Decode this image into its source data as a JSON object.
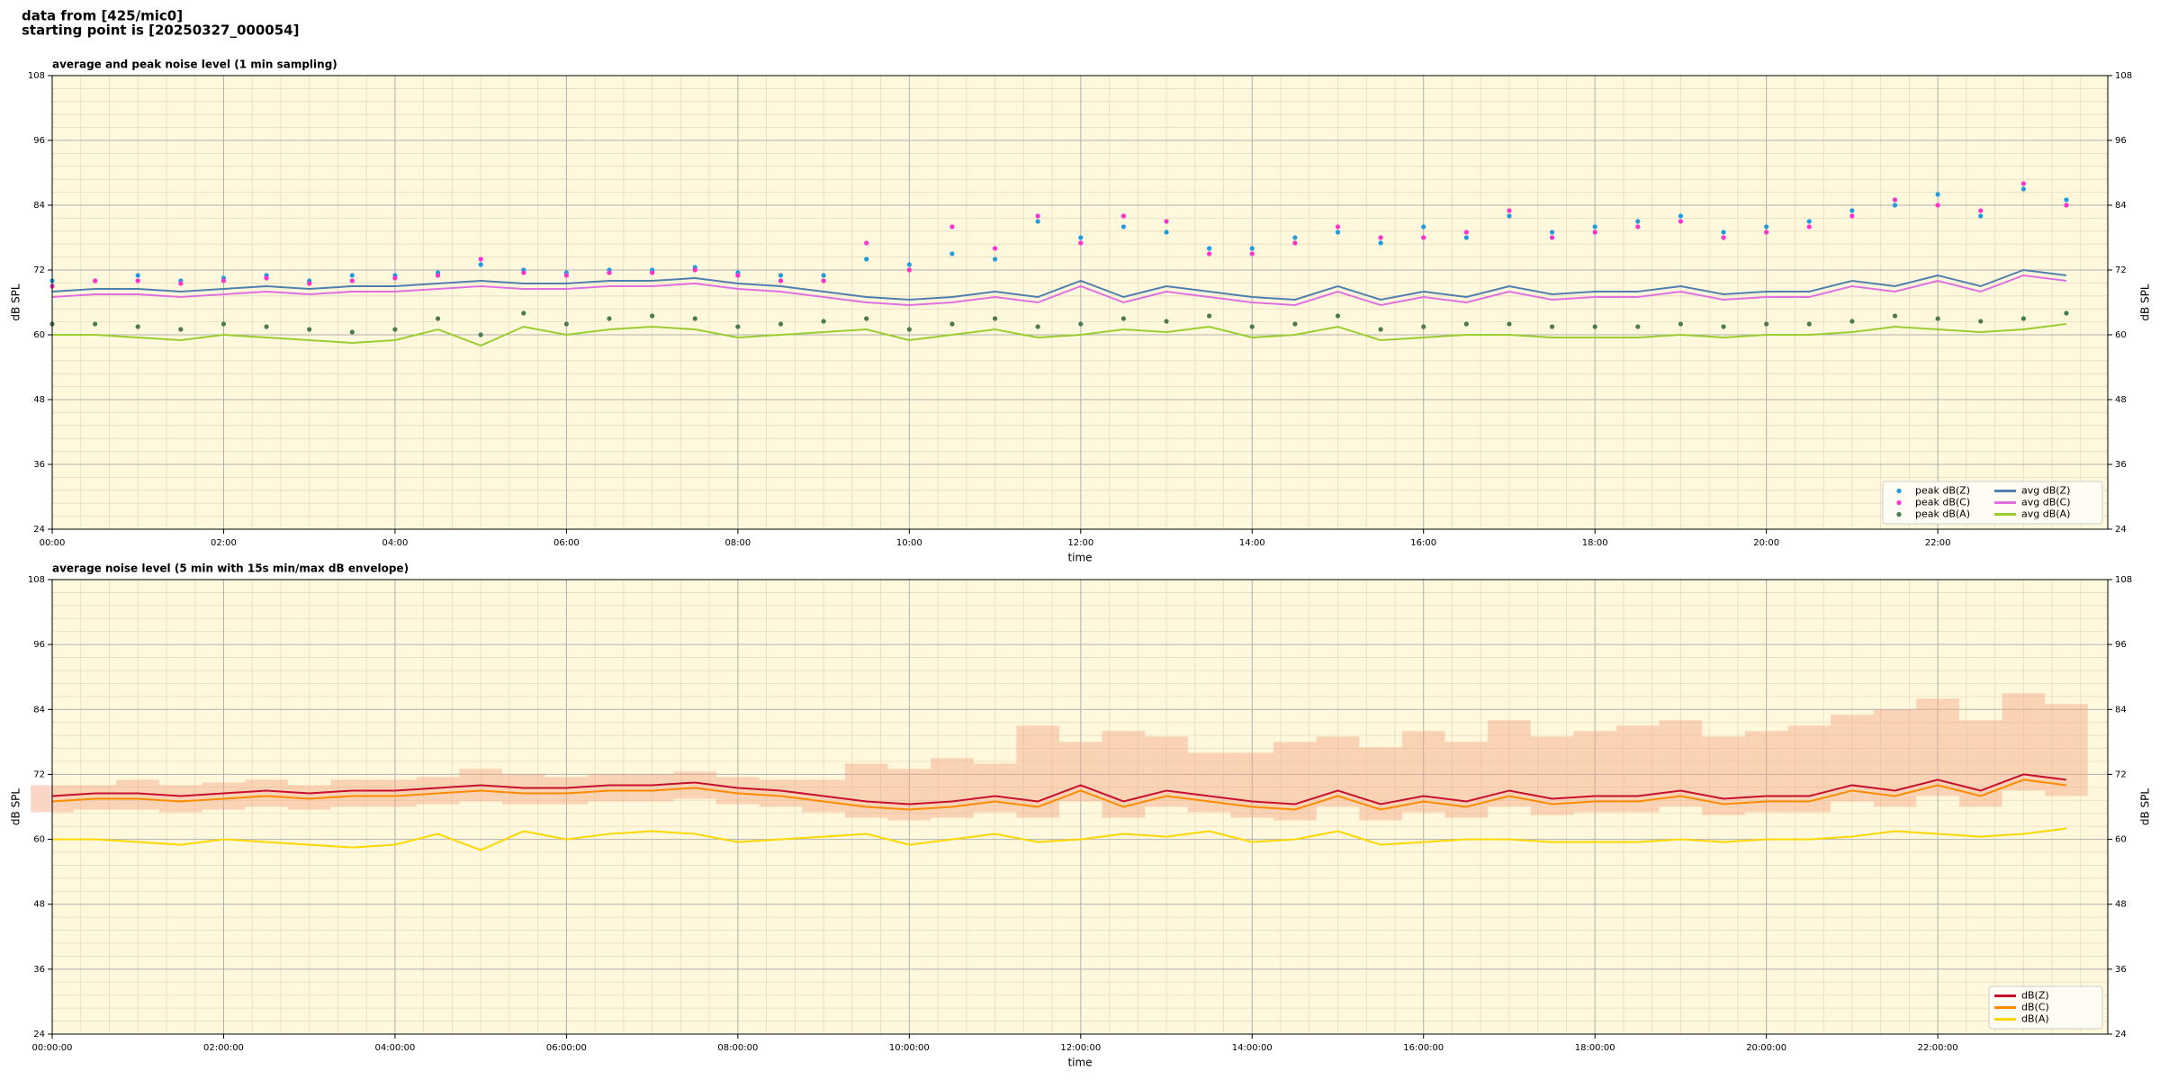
{
  "page_title": [
    "data from [425/mic0]",
    "starting point is [20250327_000054]"
  ],
  "chart_data": [
    {
      "type": "line",
      "title": "average and peak noise level (1 min sampling)",
      "x_label": "time",
      "y_label": "dB SPL",
      "x": [
        "00:00",
        "00:30",
        "01:00",
        "01:30",
        "02:00",
        "02:30",
        "03:00",
        "03:30",
        "04:00",
        "04:30",
        "05:00",
        "05:30",
        "06:00",
        "06:30",
        "07:00",
        "07:30",
        "08:00",
        "08:30",
        "09:00",
        "09:30",
        "10:00",
        "10:30",
        "11:00",
        "11:30",
        "12:00",
        "12:30",
        "13:00",
        "13:30",
        "14:00",
        "14:30",
        "15:00",
        "15:30",
        "16:00",
        "16:30",
        "17:00",
        "17:30",
        "18:00",
        "18:30",
        "19:00",
        "19:30",
        "20:00",
        "20:30",
        "21:00",
        "21:30",
        "22:00",
        "22:30",
        "23:00",
        "23:30"
      ],
      "xlim": [
        "00:00",
        "23:59"
      ],
      "xticks": [
        "00:00",
        "02:00",
        "04:00",
        "06:00",
        "08:00",
        "10:00",
        "12:00",
        "14:00",
        "16:00",
        "18:00",
        "20:00",
        "22:00"
      ],
      "ylim": [
        24,
        108
      ],
      "yticks": [
        24,
        36,
        48,
        60,
        72,
        84,
        96,
        108
      ],
      "grid": true,
      "background": "#fff8dc",
      "legend": "lower right",
      "legend_columns": 2,
      "series": [
        {
          "name": "peak dB(Z)",
          "kind": "scatter",
          "color": "#1f9bdf",
          "values": [
            70,
            70,
            71,
            70,
            70.5,
            71,
            70,
            71,
            71,
            71.5,
            73,
            72,
            71.5,
            72,
            72,
            72.5,
            71.5,
            71,
            71,
            74,
            73,
            75,
            74,
            81,
            78,
            80,
            79,
            76,
            76,
            78,
            79,
            77,
            80,
            78,
            82,
            79,
            80,
            81,
            82,
            79,
            80,
            81,
            83,
            84,
            86,
            82,
            87,
            85
          ]
        },
        {
          "name": "peak dB(C)",
          "kind": "scatter",
          "color": "#ff33cc",
          "values": [
            69,
            70,
            70,
            69.5,
            70,
            70.5,
            69.5,
            70,
            70.5,
            71,
            74,
            71.5,
            71,
            71.5,
            71.5,
            72,
            71,
            70,
            70,
            77,
            72,
            80,
            76,
            82,
            77,
            82,
            81,
            75,
            75,
            77,
            80,
            78,
            78,
            79,
            83,
            78,
            79,
            80,
            81,
            78,
            79,
            80,
            82,
            85,
            84,
            83,
            88,
            84
          ]
        },
        {
          "name": "peak dB(A)",
          "kind": "scatter",
          "color": "#4b7b52",
          "values": [
            62,
            62,
            61.5,
            61,
            62,
            61.5,
            61,
            60.5,
            61,
            63,
            60,
            64,
            62,
            63,
            63.5,
            63,
            61.5,
            62,
            62.5,
            63,
            61,
            62,
            63,
            61.5,
            62,
            63,
            62.5,
            63.5,
            61.5,
            62,
            63.5,
            61,
            61.5,
            62,
            62,
            61.5,
            61.5,
            61.5,
            62,
            61.5,
            62,
            62,
            62.5,
            63.5,
            63,
            62.5,
            63,
            64
          ]
        },
        {
          "name": "avg dB(Z)",
          "kind": "line",
          "color": "#4f7fad",
          "values": [
            68,
            68.5,
            68.5,
            68,
            68.5,
            69,
            68.5,
            69,
            69,
            69.5,
            70,
            69.5,
            69.5,
            70,
            70,
            70.5,
            69.5,
            69,
            68,
            67,
            66.5,
            67,
            68,
            67,
            70,
            67,
            69,
            68,
            67,
            66.5,
            69,
            66.5,
            68,
            67,
            69,
            67.5,
            68,
            68,
            69,
            67.5,
            68,
            68,
            70,
            69,
            71,
            69,
            72,
            71
          ]
        },
        {
          "name": "avg dB(C)",
          "kind": "line",
          "color": "#e070e0",
          "values": [
            67,
            67.5,
            67.5,
            67,
            67.5,
            68,
            67.5,
            68,
            68,
            68.5,
            69,
            68.5,
            68.5,
            69,
            69,
            69.5,
            68.5,
            68,
            67,
            66,
            65.5,
            66,
            67,
            66,
            69,
            66,
            68,
            67,
            66,
            65.5,
            68,
            65.5,
            67,
            66,
            68,
            66.5,
            67,
            67,
            68,
            66.5,
            67,
            67,
            69,
            68,
            70,
            68,
            71,
            70
          ]
        },
        {
          "name": "avg dB(A)",
          "kind": "line",
          "color": "#9acd32",
          "values": [
            60,
            60,
            59.5,
            59,
            60,
            59.5,
            59,
            58.5,
            59,
            61,
            58,
            61.5,
            60,
            61,
            61.5,
            61,
            59.5,
            60,
            60.5,
            61,
            59,
            60,
            61,
            59.5,
            60,
            61,
            60.5,
            61.5,
            59.5,
            60,
            61.5,
            59,
            59.5,
            60,
            60,
            59.5,
            59.5,
            59.5,
            60,
            59.5,
            60,
            60,
            60.5,
            61.5,
            61,
            60.5,
            61,
            62
          ]
        }
      ]
    },
    {
      "type": "line",
      "title": "average noise level (5 min with 15s min/max dB envelope)",
      "x_label": "time",
      "y_label": "dB SPL",
      "x": [
        "00:00",
        "00:30",
        "01:00",
        "01:30",
        "02:00",
        "02:30",
        "03:00",
        "03:30",
        "04:00",
        "04:30",
        "05:00",
        "05:30",
        "06:00",
        "06:30",
        "07:00",
        "07:30",
        "08:00",
        "08:30",
        "09:00",
        "09:30",
        "10:00",
        "10:30",
        "11:00",
        "11:30",
        "12:00",
        "12:30",
        "13:00",
        "13:30",
        "14:00",
        "14:30",
        "15:00",
        "15:30",
        "16:00",
        "16:30",
        "17:00",
        "17:30",
        "18:00",
        "18:30",
        "19:00",
        "19:30",
        "20:00",
        "20:30",
        "21:00",
        "21:30",
        "22:00",
        "22:30",
        "23:00",
        "23:30"
      ],
      "xlim": [
        "00:00",
        "23:59"
      ],
      "xticks": [
        {
          "value": "00:00",
          "label": "00:00:00"
        },
        {
          "value": "02:00",
          "label": "02:00:00"
        },
        {
          "value": "04:00",
          "label": "04:00:00"
        },
        {
          "value": "06:00",
          "label": "06:00:00"
        },
        {
          "value": "08:00",
          "label": "08:00:00"
        },
        {
          "value": "10:00",
          "label": "10:00:00"
        },
        {
          "value": "12:00",
          "label": "12:00:00"
        },
        {
          "value": "14:00",
          "label": "14:00:00"
        },
        {
          "value": "16:00",
          "label": "16:00:00"
        },
        {
          "value": "18:00",
          "label": "18:00:00"
        },
        {
          "value": "20:00",
          "label": "20:00:00"
        },
        {
          "value": "22:00",
          "label": "22:00:00"
        }
      ],
      "ylim": [
        24,
        108
      ],
      "yticks": [
        24,
        36,
        48,
        60,
        72,
        84,
        96,
        108
      ],
      "grid": true,
      "background": "#fff8dc",
      "legend": "lower right",
      "legend_columns": 1,
      "envelope": {
        "color": "#f4a582",
        "low": [
          65,
          65.5,
          65.5,
          65,
          65.5,
          66,
          65.5,
          66,
          66,
          66.5,
          67,
          66.5,
          66.5,
          67,
          67,
          67.5,
          66.5,
          66,
          65,
          64,
          63.5,
          64,
          65,
          64,
          67,
          64,
          66,
          65,
          64,
          63.5,
          66,
          63.5,
          65,
          64,
          66,
          64.5,
          65,
          65,
          66,
          64.5,
          65,
          65,
          67,
          66,
          68,
          66,
          69,
          68
        ],
        "high": [
          70,
          70,
          71,
          70,
          70.5,
          71,
          70,
          71,
          71,
          71.5,
          73,
          72,
          71.5,
          72,
          72,
          72.5,
          71.5,
          71,
          71,
          74,
          73,
          75,
          74,
          81,
          78,
          80,
          79,
          76,
          76,
          78,
          79,
          77,
          80,
          78,
          82,
          79,
          80,
          81,
          82,
          79,
          80,
          81,
          83,
          84,
          86,
          82,
          87,
          85
        ]
      },
      "series": [
        {
          "name": "dB(Z)",
          "kind": "line",
          "color": "#c8102e",
          "values": [
            68,
            68.5,
            68.5,
            68,
            68.5,
            69,
            68.5,
            69,
            69,
            69.5,
            70,
            69.5,
            69.5,
            70,
            70,
            70.5,
            69.5,
            69,
            68,
            67,
            66.5,
            67,
            68,
            67,
            70,
            67,
            69,
            68,
            67,
            66.5,
            69,
            66.5,
            68,
            67,
            69,
            67.5,
            68,
            68,
            69,
            67.5,
            68,
            68,
            70,
            69,
            71,
            69,
            72,
            71
          ]
        },
        {
          "name": "dB(C)",
          "kind": "line",
          "color": "#ff8c00",
          "values": [
            67,
            67.5,
            67.5,
            67,
            67.5,
            68,
            67.5,
            68,
            68,
            68.5,
            69,
            68.5,
            68.5,
            69,
            69,
            69.5,
            68.5,
            68,
            67,
            66,
            65.5,
            66,
            67,
            66,
            69,
            66,
            68,
            67,
            66,
            65.5,
            68,
            65.5,
            67,
            66,
            68,
            66.5,
            67,
            67,
            68,
            66.5,
            67,
            67,
            69,
            68,
            70,
            68,
            71,
            70
          ]
        },
        {
          "name": "dB(A)",
          "kind": "line",
          "color": "#ffd700",
          "values": [
            60,
            60,
            59.5,
            59,
            60,
            59.5,
            59,
            58.5,
            59,
            61,
            58,
            61.5,
            60,
            61,
            61.5,
            61,
            59.5,
            60,
            60.5,
            61,
            59,
            60,
            61,
            59.5,
            60,
            61,
            60.5,
            61.5,
            59.5,
            60,
            61.5,
            59,
            59.5,
            60,
            60,
            59.5,
            59.5,
            59.5,
            60,
            59.5,
            60,
            60,
            60.5,
            61.5,
            61,
            60.5,
            61,
            62
          ]
        }
      ]
    }
  ]
}
